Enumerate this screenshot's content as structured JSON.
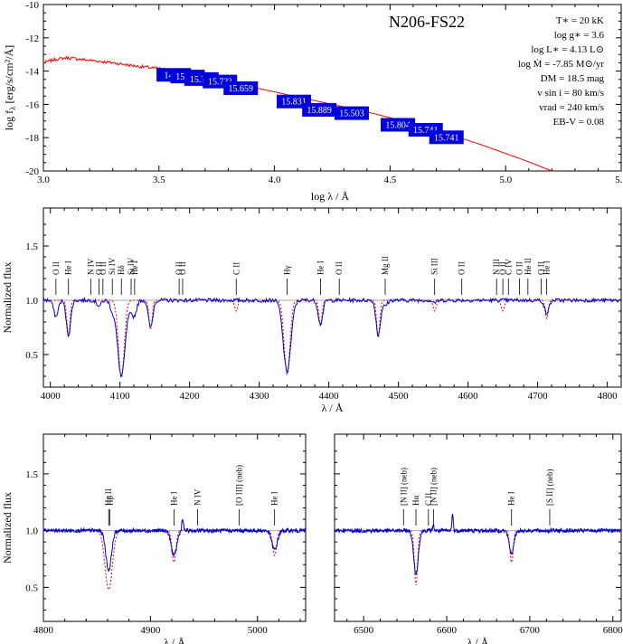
{
  "sed": {
    "star": "N206-FS22",
    "xlabel": "log λ / Å",
    "ylabel": "log f",
    "ylabel_sub": "λ",
    "ylabel_units": " [erg/s/cm²/Å]",
    "parameters": [
      "T∗ = 20 kK",
      "log g∗ = 3.6",
      "log L∗ = 4.13 L⊙",
      "log Ṁ = -7.85 M⊙/yr",
      "DM = 18.5 mag",
      "v sin i = 80 km/s",
      "vrad = 240 km/s",
      "EB-V = 0.08"
    ],
    "photometry_labels": [
      "14.??",
      "15.6??",
      "15.???",
      "15.7??",
      "15.659",
      "15.831",
      "15.889",
      "15.503",
      "15.804",
      "15.741",
      "15.741"
    ],
    "colors": {
      "model": "#ff0000",
      "box": "#0000dd",
      "box_text": "#ffffff"
    }
  },
  "spec": {
    "ylabel": "Normalized flux",
    "xlabel": "λ / Å",
    "colors": {
      "observed": "#0000cc",
      "model": "#ff0000",
      "continuum": "#aaaaaa"
    },
    "lines_top": [
      {
        "w": 4070,
        "label": "O II"
      },
      {
        "w": 4075.5,
        "label": "O II"
      },
      {
        "w": 4089,
        "label": "Si IV"
      },
      {
        "w": 4102,
        "label": "Hδ"
      },
      {
        "w": 4116,
        "label": "Si IV"
      },
      {
        "w": 4121,
        "label": "He I"
      },
      {
        "w": 4185,
        "label": "O II"
      },
      {
        "w": 4190,
        "label": "O II"
      },
      {
        "w": 4267,
        "label": "C II"
      },
      {
        "w": 4340,
        "label": "Hγ"
      },
      {
        "w": 4415,
        "label": "O II"
      },
      {
        "w": 4481,
        "label": "Mg II"
      },
      {
        "w": 4552,
        "label": "Si III"
      },
      {
        "w": 4591,
        "label": "O II"
      },
      {
        "w": 4641,
        "label": "N III"
      },
      {
        "w": 4650,
        "label": "O II"
      },
      {
        "w": 4658,
        "label": "C IV"
      },
      {
        "w": 4674,
        "label": "O II"
      },
      {
        "w": 4686,
        "label": "He II"
      },
      {
        "w": 4705,
        "label": "O II"
      },
      {
        "w": 4713,
        "label": "He I"
      },
      {
        "w": 4026,
        "label": "He I"
      },
      {
        "w": 4058,
        "label": "N IV"
      },
      {
        "w": 4008,
        "label": "O II"
      },
      {
        "w": 4388,
        "label": "He I"
      }
    ],
    "lines_bl": [
      {
        "w": 4861,
        "label": "He II"
      },
      {
        "w": 4862,
        "label": "Hβ"
      },
      {
        "w": 4922,
        "label": "He I"
      },
      {
        "w": 4944,
        "label": "N IV"
      },
      {
        "w": 4983,
        "label": "[O III] (neb)"
      },
      {
        "w": 5016,
        "label": "He I"
      }
    ],
    "lines_br": [
      {
        "w": 6548,
        "label": "[N II] (neb)"
      },
      {
        "w": 6563,
        "label": "Hα"
      },
      {
        "w": 6578,
        "label": "C II"
      },
      {
        "w": 6584,
        "label": "[N II] (neb)"
      },
      {
        "w": 6678,
        "label": "He I"
      },
      {
        "w": 6724,
        "label": "[S II] (neb)"
      }
    ]
  },
  "chart_data": [
    {
      "type": "line",
      "title": "N206-FS22",
      "xlabel": "log λ / Å",
      "ylabel": "log fλ [erg/s/cm²/Å]",
      "xlim": [
        3.0,
        5.5
      ],
      "ylim": [
        -20,
        -10
      ],
      "series": [
        {
          "values": [
            [
              3.0,
              -13.5
            ],
            [
              3.05,
              -13.3
            ],
            [
              3.1,
              -13.2
            ],
            [
              3.2,
              -13.35
            ],
            [
              3.3,
              -13.5
            ],
            [
              3.4,
              -13.7
            ],
            [
              3.5,
              -13.85
            ],
            [
              3.6,
              -14.1
            ],
            [
              3.7,
              -14.35
            ],
            [
              3.8,
              -14.65
            ],
            [
              3.9,
              -14.95
            ],
            [
              4.0,
              -15.25
            ],
            [
              4.1,
              -15.55
            ],
            [
              4.2,
              -15.85
            ],
            [
              4.3,
              -16.15
            ],
            [
              4.4,
              -16.45
            ],
            [
              4.5,
              -16.8
            ],
            [
              4.6,
              -17.15
            ],
            [
              4.7,
              -17.55
            ],
            [
              4.8,
              -18.0
            ],
            [
              4.9,
              -18.45
            ],
            [
              5.0,
              -18.95
            ],
            [
              5.1,
              -19.45
            ],
            [
              5.2,
              -20.0
            ]
          ]
        },
        {
          "values": [
            [
              3.56,
              -14.2
            ],
            [
              3.62,
              -14.3
            ],
            [
              3.68,
              -14.45
            ],
            [
              3.76,
              -14.6
            ],
            [
              3.85,
              -15.0
            ],
            [
              4.08,
              -15.8
            ],
            [
              4.19,
              -16.3
            ],
            [
              4.33,
              -16.5
            ],
            [
              4.53,
              -17.2
            ],
            [
              4.65,
              -17.5
            ],
            [
              4.74,
              -17.95
            ]
          ]
        }
      ]
    },
    {
      "type": "line",
      "xlabel": "λ / Å",
      "ylabel": "Normalized flux",
      "xlim": [
        3990,
        4820
      ],
      "ylim": [
        0.2,
        1.85
      ],
      "series": [
        {
          "values": [
            [
              3990,
              1.02
            ],
            [
              4008,
              0.85
            ],
            [
              4026,
              0.68
            ],
            [
              4070,
              0.95
            ],
            [
              4089,
              0.92
            ],
            [
              4102,
              0.3
            ],
            [
              4116,
              0.93
            ],
            [
              4121,
              0.88
            ],
            [
              4144,
              0.75
            ],
            [
              4267,
              1.0
            ],
            [
              4340,
              0.34
            ],
            [
              4388,
              0.78
            ],
            [
              4471,
              0.68
            ],
            [
              4481,
              0.95
            ],
            [
              4552,
              0.98
            ],
            [
              4713,
              0.88
            ],
            [
              4820,
              1.02
            ]
          ]
        },
        {
          "values": [
            [
              3990,
              1.0
            ],
            [
              4026,
              0.67
            ],
            [
              4102,
              0.28
            ],
            [
              4144,
              0.73
            ],
            [
              4267,
              0.9
            ],
            [
              4340,
              0.32
            ],
            [
              4388,
              0.76
            ],
            [
              4471,
              0.65
            ],
            [
              4552,
              0.9
            ],
            [
              4650,
              0.9
            ],
            [
              4713,
              0.83
            ],
            [
              4820,
              1.0
            ]
          ]
        }
      ]
    },
    {
      "type": "line",
      "xlabel": "λ / Å",
      "ylabel": "Normalized flux",
      "xlim": [
        4800,
        5045
      ],
      "ylim": [
        0.2,
        1.85
      ],
      "series": [
        {
          "values": [
            [
              4800,
              1.0
            ],
            [
              4861,
              0.65
            ],
            [
              4922,
              0.78
            ],
            [
              4930,
              1.1
            ],
            [
              5016,
              0.83
            ],
            [
              5045,
              1.0
            ]
          ]
        },
        {
          "values": [
            [
              4800,
              1.0
            ],
            [
              4861,
              0.48
            ],
            [
              4922,
              0.72
            ],
            [
              5016,
              0.78
            ],
            [
              5045,
              1.0
            ]
          ]
        }
      ]
    },
    {
      "type": "line",
      "xlabel": "λ / Å",
      "xlim": [
        6465,
        6810
      ],
      "ylim": [
        0.2,
        1.85
      ],
      "series": [
        {
          "values": [
            [
              6465,
              1.0
            ],
            [
              6563,
              0.62
            ],
            [
              6584,
              1.05
            ],
            [
              6607,
              1.15
            ],
            [
              6678,
              0.8
            ],
            [
              6810,
              1.0
            ]
          ]
        },
        {
          "values": [
            [
              6465,
              1.0
            ],
            [
              6563,
              0.52
            ],
            [
              6678,
              0.72
            ],
            [
              6810,
              1.0
            ]
          ]
        }
      ]
    }
  ]
}
